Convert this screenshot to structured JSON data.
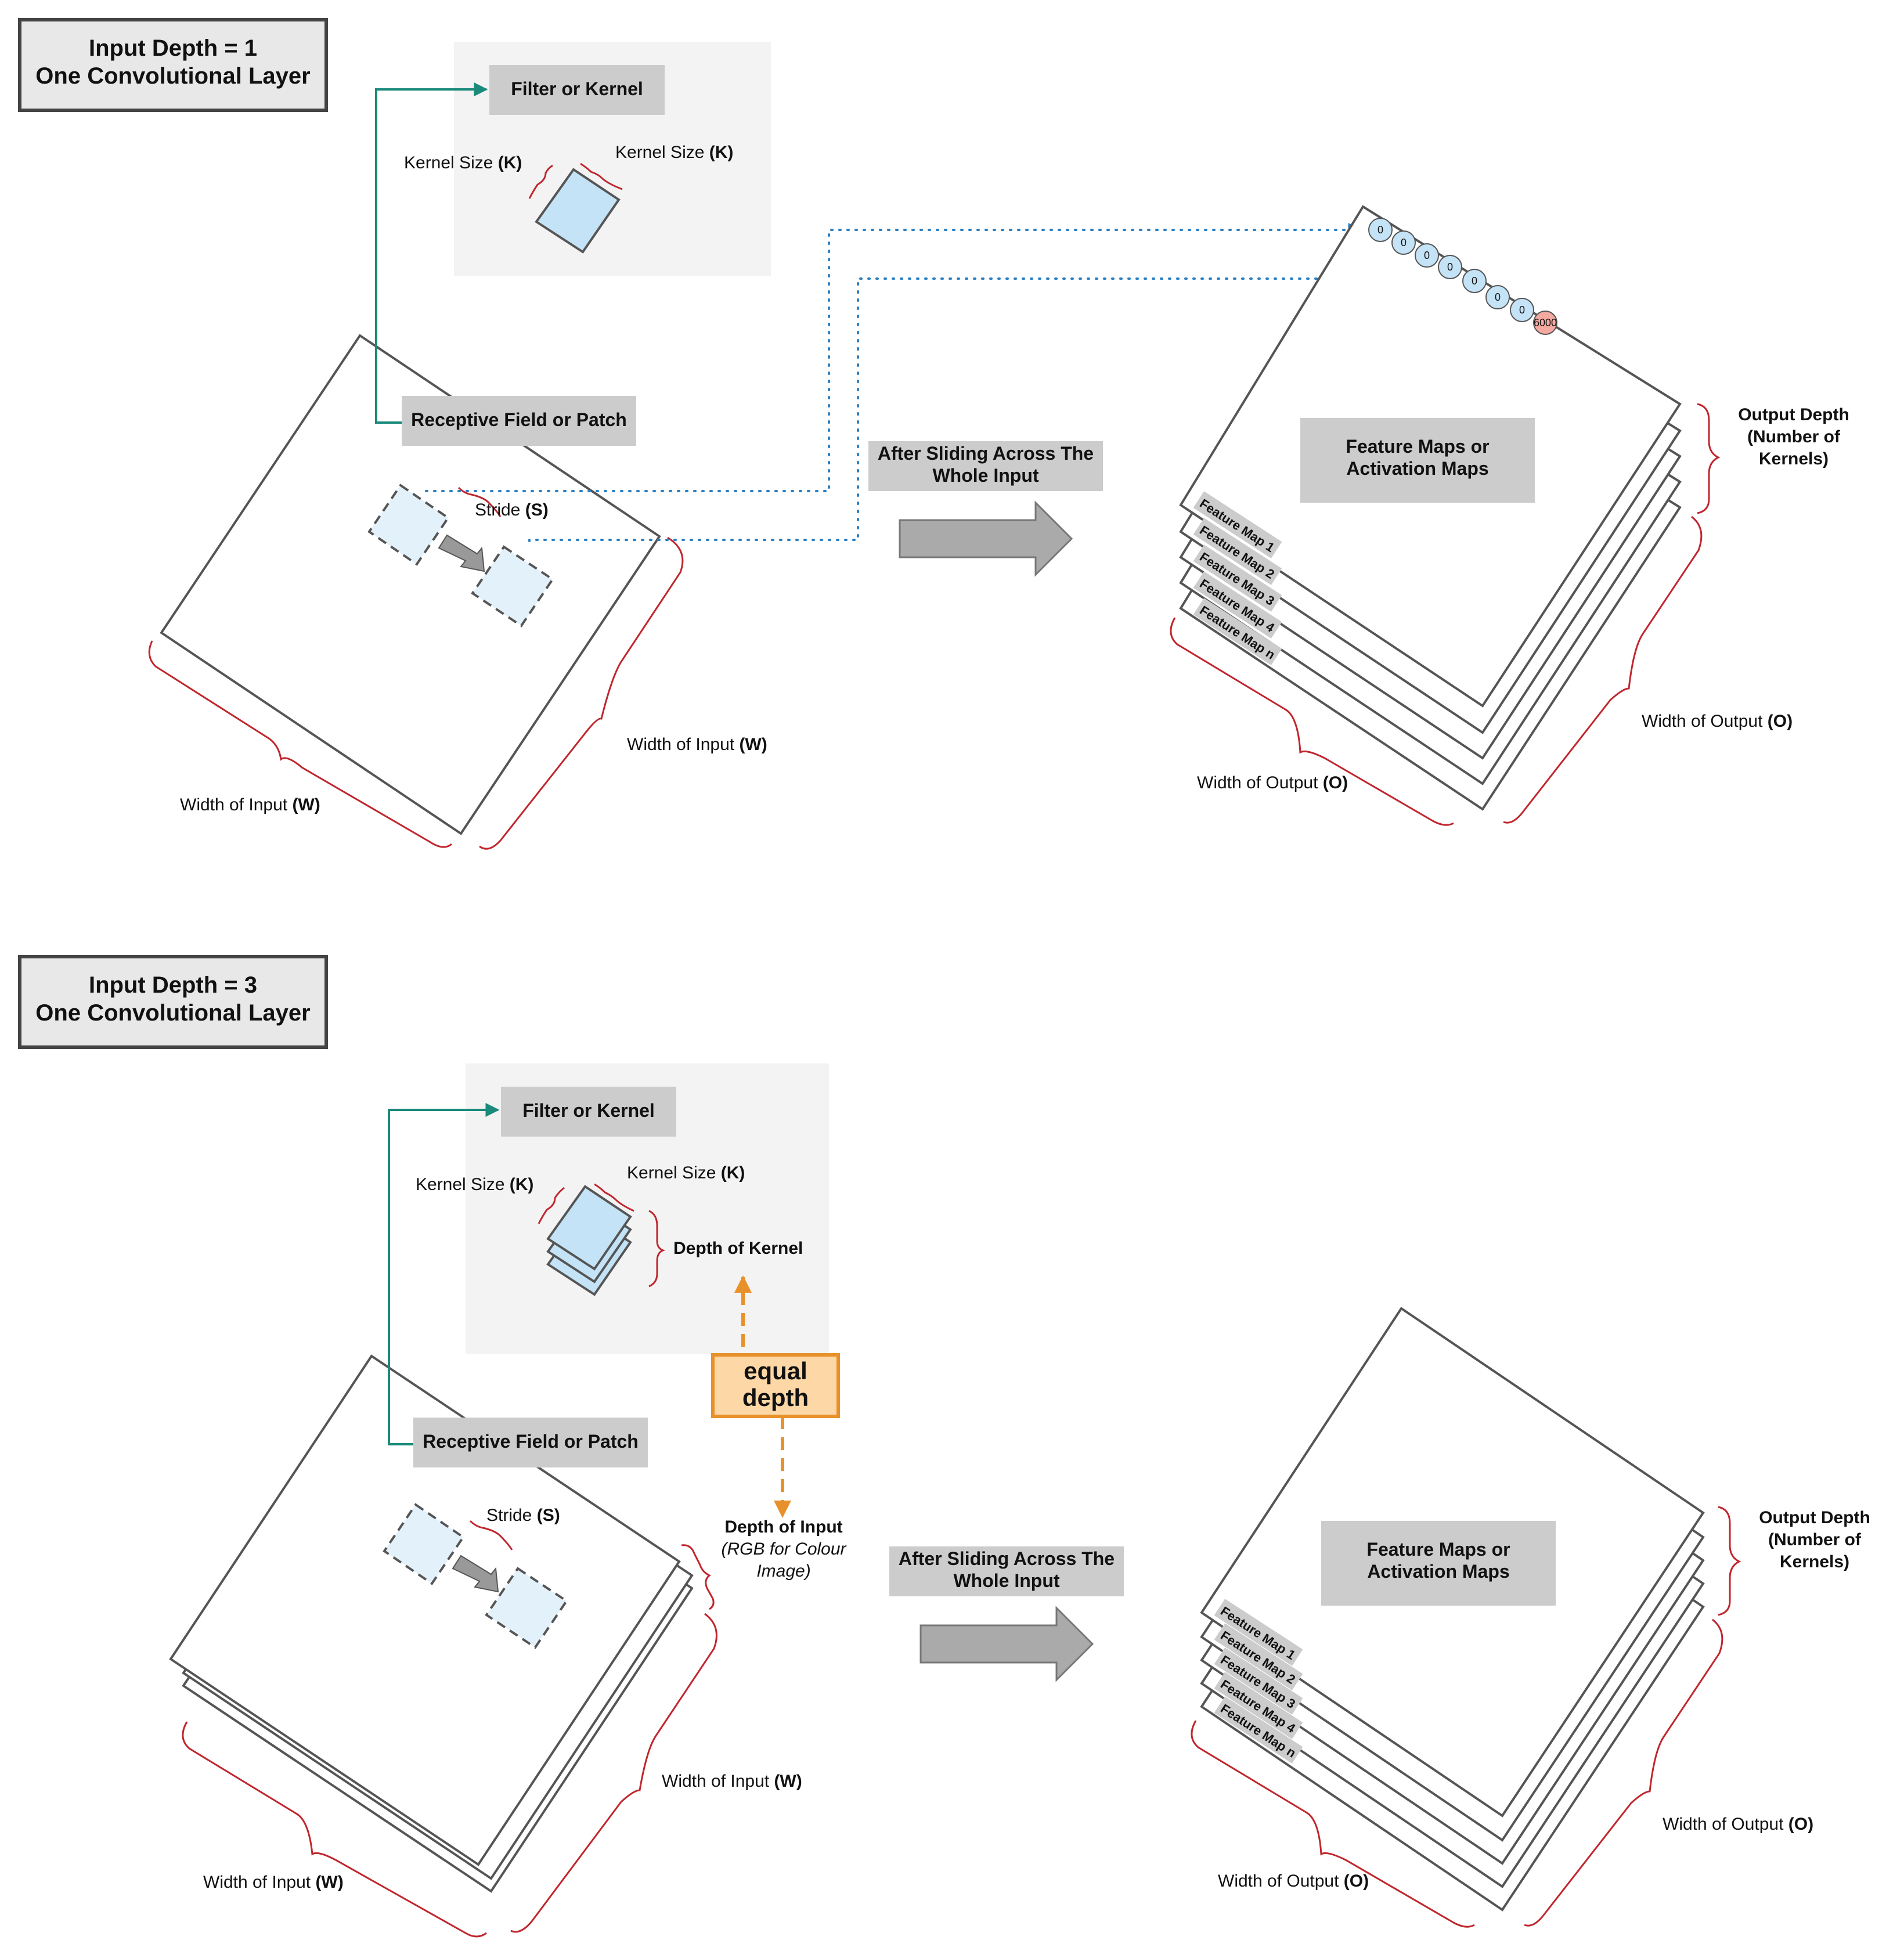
{
  "colors": {
    "sheet_stroke": "#555555",
    "label_box_fill": "#cccccc",
    "title_box_fill": "#e8e8e8",
    "panel_fill": "#f3f3f3",
    "kernel_fill": "#c5e3f6",
    "patch_fill": "#e3f1fb",
    "brace_red": "#c0262d",
    "teal_connector": "#1a8a7a",
    "dotted_blue": "#2a7fc2",
    "node_blue": "#c5e3f6",
    "node_red": "#f4aaa0",
    "orange": "#e8912b",
    "orange_fill": "#fdd7a6",
    "arrow_gray": "#aaaaaa"
  },
  "panel_top": {
    "title_line1": "Input Depth = 1",
    "title_line2": "One Convolutional Layer",
    "filter_label": "Filter or Kernel",
    "kernel_size_left": "Kernel Size ",
    "kernel_size_right": "Kernel Size ",
    "k_symbol": "(K)",
    "receptive_field_label": "Receptive Field or Patch",
    "stride_label": "Stride ",
    "s_symbol": "(S)",
    "width_input_text": "Width of Input ",
    "w_symbol": "(W)",
    "sliding_line1": "After Sliding Across The",
    "sliding_line2": "Whole Input",
    "feature_maps_line1": "Feature Maps or",
    "feature_maps_line2": "Activation Maps",
    "output_depth_line1": "Output Depth",
    "output_depth_line2": "(Number of",
    "output_depth_line3": "Kernels)",
    "width_output_text": "Width of Output ",
    "o_symbol": "(O)",
    "feature_map_labels": [
      "Feature Map 1",
      "Feature Map 2",
      "Feature Map 3",
      "Feature Map 4",
      "Feature Map n"
    ],
    "node_values": [
      "0",
      "0",
      "0",
      "0",
      "0",
      "0",
      "0",
      "6000"
    ]
  },
  "panel_bottom": {
    "title_line1": "Input Depth = 3",
    "title_line2": "One Convolutional Layer",
    "filter_label": "Filter or Kernel",
    "kernel_size_left": "Kernel Size ",
    "kernel_size_right": "Kernel Size ",
    "k_symbol": "(K)",
    "depth_kernel_label": "Depth of Kernel",
    "receptive_field_label": "Receptive Field or Patch",
    "stride_label": "Stride ",
    "s_symbol": "(S)",
    "equal_line1": "equal",
    "equal_line2": "depth",
    "depth_input_line1": "Depth of Input",
    "depth_input_line2": "(RGB for Colour",
    "depth_input_line3": "Image)",
    "width_input_text": "Width of Input ",
    "w_symbol": "(W)",
    "sliding_line1": "After Sliding Across The",
    "sliding_line2": "Whole Input",
    "feature_maps_line1": "Feature Maps or",
    "feature_maps_line2": "Activation Maps",
    "output_depth_line1": "Output Depth",
    "output_depth_line2": "(Number of",
    "output_depth_line3": "Kernels)",
    "width_output_text": "Width of Output ",
    "o_symbol": "(O)",
    "feature_map_labels": [
      "Feature Map 1",
      "Feature Map 2",
      "Feature Map 3",
      "Feature Map 4",
      "Feature Map n"
    ]
  }
}
